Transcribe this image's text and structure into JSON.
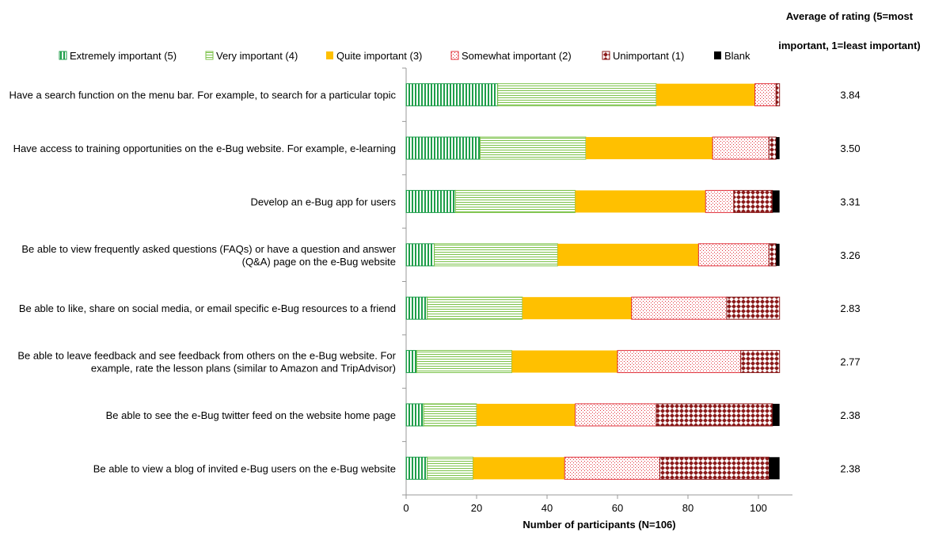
{
  "chart_data": {
    "type": "bar",
    "orientation": "horizontal",
    "stacked": true,
    "xlabel": "Number of participants (N=106)",
    "xlim": [
      0,
      110
    ],
    "xticks": [
      "0",
      "20",
      "40",
      "60",
      "80",
      "100"
    ],
    "legend_position": "top",
    "avg_header_line1": "Average of rating (5=most",
    "avg_header_line2": "important, 1=least important)",
    "categories": [
      [
        "Have a search function on the menu bar. For example, to search for a particular topic"
      ],
      [
        "Have access to training opportunities on the e-Bug website. For example, e-learning"
      ],
      [
        "Develop an e-Bug app for users"
      ],
      [
        "Be able to view frequently asked questions (FAQs) or have a question and answer",
        "(Q&A) page on the e-Bug website"
      ],
      [
        "Be able to like, share on social media, or email specific e-Bug resources to a friend"
      ],
      [
        "Be able to leave feedback and see feedback from others on the e-Bug website. For",
        "example, rate the lesson plans (similar to Amazon and TripAdvisor)"
      ],
      [
        "Be able to see the e-Bug twitter feed on the website home page"
      ],
      [
        "Be able to view a blog of invited e-Bug users on the e-Bug website"
      ]
    ],
    "averages": [
      "3.84",
      "3.50",
      "3.31",
      "3.26",
      "2.83",
      "2.77",
      "2.38",
      "2.38"
    ],
    "series": [
      {
        "name": "Extremely important (5)",
        "color": "#1e9e4a",
        "pattern": "vertical-lines",
        "values": [
          26,
          21,
          14,
          8,
          6,
          3,
          5,
          6
        ]
      },
      {
        "name": "Very important (4)",
        "color": "#7cc24a",
        "pattern": "horizontal-lines",
        "values": [
          45,
          30,
          34,
          35,
          27,
          27,
          15,
          13
        ]
      },
      {
        "name": "Quite important (3)",
        "color": "#ffc000",
        "pattern": "solid",
        "values": [
          28,
          36,
          37,
          40,
          31,
          30,
          28,
          26
        ]
      },
      {
        "name": "Somewhat important (2)",
        "color": "#e0303a",
        "pattern": "dots",
        "values": [
          6,
          16,
          8,
          20,
          27,
          35,
          23,
          27
        ]
      },
      {
        "name": "Unimportant (1)",
        "color": "#8b1a1a",
        "pattern": "diamonds",
        "values": [
          1,
          2,
          11,
          2,
          15,
          11,
          33,
          31
        ]
      },
      {
        "name": "Blank",
        "color": "#000000",
        "pattern": "solid",
        "values": [
          0,
          1,
          2,
          1,
          0,
          0,
          2,
          3
        ]
      }
    ]
  }
}
